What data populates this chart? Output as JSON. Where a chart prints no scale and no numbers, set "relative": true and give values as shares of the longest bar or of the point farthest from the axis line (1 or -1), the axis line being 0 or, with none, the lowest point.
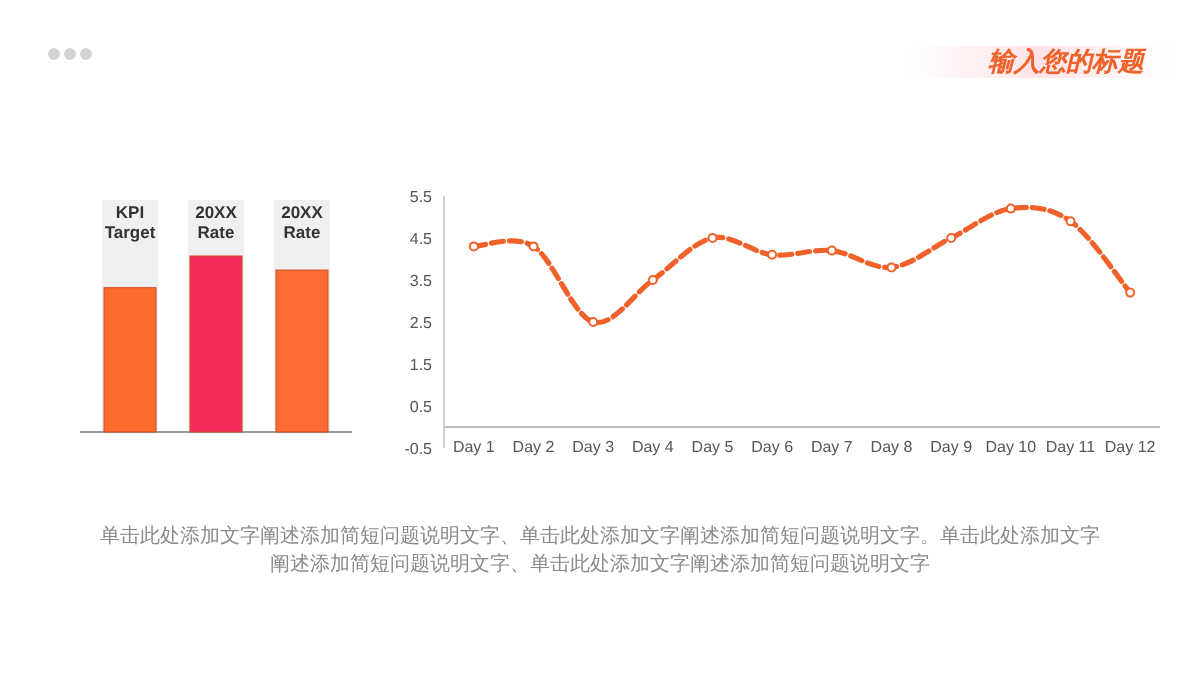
{
  "chart_data": [
    {
      "type": "bar",
      "categories": [
        "KPI Target",
        "20XX Rate",
        "20XX Rate"
      ],
      "values": [
        0.82,
        1,
        0.92
      ],
      "colors": [
        "#ff6b2d",
        "#f72a5c",
        "#ff6b33"
      ],
      "relative": true
    },
    {
      "type": "line",
      "categories": [
        "Day 1",
        "Day 2",
        "Day 3",
        "Day 4",
        "Day 5",
        "Day 6",
        "Day 7",
        "Day 8",
        "Day 9",
        "Day 10",
        "Day 11",
        "Day 12"
      ],
      "series": [
        {
          "color": "#f0622a",
          "values": [
            4.3,
            4.3,
            2.5,
            3.5,
            4.5,
            4.1,
            4.2,
            3.8,
            4.5,
            5.2,
            4.9,
            3.2
          ]
        }
      ],
      "ylim": [
        -0.5,
        5.5
      ],
      "yticks": [
        -0.5,
        0.5,
        1.5,
        2.5,
        3.5,
        4.5,
        5.5
      ],
      "marker": "circle",
      "line_style": "dashed",
      "grid": false
    },
    {
      "type": "other",
      "title": "输入您的标题",
      "annotations": [
        "单击此处添加文字阐述添加简短问题说明文字、单击此处添加文字阐述添加简短问题说明文字。单击此处添加文字阐述添加简短问题说明文字、单击此处添加文字阐述添加简短问题说明文字"
      ]
    }
  ]
}
